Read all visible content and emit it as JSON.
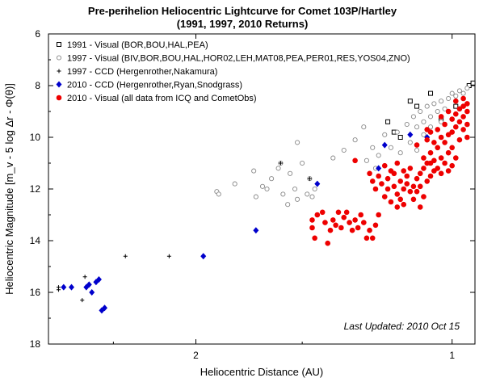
{
  "chart_data": {
    "type": "scatter",
    "title": "Pre-perihelion Heliocentric Lightcurve for Comet 103P/Hartley",
    "subtitle": "(1991, 1997, 2010 Returns)",
    "xlabel": "Heliocentric Distance (AU)",
    "ylabel": "Heliocentric Magnitude [m_v - 5 log Δr - Φ(θ)]",
    "xscale": "log",
    "xlim": [
      2.98,
      0.94
    ],
    "ylim": [
      18,
      6
    ],
    "x_ticks": [
      2,
      1
    ],
    "y_ticks": [
      6,
      8,
      10,
      12,
      14,
      16,
      18
    ],
    "note": "Last Updated: 2010 Oct 15",
    "legend_position": "top-left",
    "series": [
      {
        "name": "1991 - Visual (BOR,BOU,HAL,PEA)",
        "marker": "open-square",
        "color": "#000000",
        "points": [
          [
            1.19,
            9.4
          ],
          [
            1.12,
            8.6
          ],
          [
            1.1,
            8.8
          ],
          [
            1.06,
            8.3
          ],
          [
            1.03,
            9.3
          ],
          [
            0.99,
            8.8
          ],
          [
            0.955,
            8.0
          ],
          [
            0.945,
            7.9
          ],
          [
            1.17,
            9.8
          ],
          [
            1.15,
            10.0
          ]
        ]
      },
      {
        "name": "1997 - Visual (BIV,BOR,BOU,HAL,HOR02,LEH,MAT08,PEA,PER01,RES,YOS04,ZNO)",
        "marker": "open-circle",
        "color": "#888888",
        "points": [
          [
            1.89,
            12.1
          ],
          [
            1.88,
            12.2
          ],
          [
            1.8,
            11.8
          ],
          [
            1.71,
            11.3
          ],
          [
            1.7,
            12.3
          ],
          [
            1.67,
            11.9
          ],
          [
            1.65,
            12.0
          ],
          [
            1.63,
            11.6
          ],
          [
            1.6,
            11.2
          ],
          [
            1.59,
            11.0
          ],
          [
            1.58,
            12.2
          ],
          [
            1.56,
            12.6
          ],
          [
            1.55,
            11.4
          ],
          [
            1.53,
            12.0
          ],
          [
            1.52,
            12.4
          ],
          [
            1.52,
            10.2
          ],
          [
            1.5,
            11.0
          ],
          [
            1.48,
            12.2
          ],
          [
            1.47,
            11.6
          ],
          [
            1.46,
            12.3
          ],
          [
            1.45,
            12.0
          ],
          [
            1.44,
            13.0
          ],
          [
            1.38,
            10.8
          ],
          [
            1.34,
            10.5
          ],
          [
            1.3,
            10.1
          ],
          [
            1.27,
            9.6
          ],
          [
            1.26,
            10.9
          ],
          [
            1.24,
            10.4
          ],
          [
            1.23,
            11.2
          ],
          [
            1.22,
            10.7
          ],
          [
            1.2,
            9.9
          ],
          [
            1.18,
            10.4
          ],
          [
            1.16,
            9.8
          ],
          [
            1.15,
            10.6
          ],
          [
            1.13,
            9.5
          ],
          [
            1.12,
            10.2
          ],
          [
            1.11,
            9.2
          ],
          [
            1.1,
            9.6
          ],
          [
            1.09,
            9.0
          ],
          [
            1.08,
            9.4
          ],
          [
            1.07,
            8.8
          ],
          [
            1.06,
            9.2
          ],
          [
            1.05,
            8.7
          ],
          [
            1.04,
            9.0
          ],
          [
            1.03,
            8.6
          ],
          [
            1.02,
            8.9
          ],
          [
            1.01,
            8.5
          ],
          [
            1.0,
            8.3
          ],
          [
            0.99,
            8.4
          ],
          [
            0.98,
            8.2
          ],
          [
            0.97,
            8.3
          ],
          [
            0.96,
            8.1
          ],
          [
            1.1,
            10.5
          ],
          [
            1.08,
            9.9
          ],
          [
            1.06,
            9.6
          ],
          [
            1.03,
            9.4
          ]
        ]
      },
      {
        "name": "1997 - CCD (Hergenrother,Nakamura)",
        "marker": "plus",
        "color": "#000000",
        "points": [
          [
            2.9,
            15.9
          ],
          [
            2.9,
            15.8
          ],
          [
            2.72,
            16.3
          ],
          [
            2.7,
            15.4
          ],
          [
            2.42,
            14.6
          ],
          [
            2.15,
            14.6
          ],
          [
            1.59,
            11.0
          ],
          [
            1.47,
            11.6
          ]
        ]
      },
      {
        "name": "2010 - CCD (Hergenrother,Ryan,Snodgrass)",
        "marker": "filled-diamond",
        "color": "#0000cc",
        "points": [
          [
            2.86,
            15.8
          ],
          [
            2.8,
            15.8
          ],
          [
            2.69,
            15.8
          ],
          [
            2.67,
            15.7
          ],
          [
            2.65,
            16.0
          ],
          [
            2.62,
            15.6
          ],
          [
            2.6,
            15.5
          ],
          [
            2.58,
            16.7
          ],
          [
            2.56,
            16.6
          ],
          [
            1.96,
            14.6
          ],
          [
            1.7,
            13.6
          ],
          [
            1.44,
            11.8
          ],
          [
            1.22,
            11.2
          ],
          [
            1.2,
            10.3
          ],
          [
            1.12,
            9.9
          ],
          [
            1.07,
            10.0
          ]
        ]
      },
      {
        "name": "2010 - Visual (all data from ICQ and CometObs)",
        "marker": "filled-circle",
        "color": "#ee0000",
        "points": [
          [
            1.46,
            13.2
          ],
          [
            1.46,
            13.5
          ],
          [
            1.45,
            13.9
          ],
          [
            1.44,
            13.0
          ],
          [
            1.42,
            12.9
          ],
          [
            1.41,
            13.3
          ],
          [
            1.4,
            14.1
          ],
          [
            1.39,
            13.6
          ],
          [
            1.38,
            13.2
          ],
          [
            1.37,
            13.4
          ],
          [
            1.36,
            12.9
          ],
          [
            1.35,
            13.5
          ],
          [
            1.34,
            13.1
          ],
          [
            1.33,
            12.9
          ],
          [
            1.32,
            13.3
          ],
          [
            1.31,
            13.6
          ],
          [
            1.3,
            13.2
          ],
          [
            1.29,
            13.5
          ],
          [
            1.28,
            13.0
          ],
          [
            1.27,
            13.3
          ],
          [
            1.26,
            13.9
          ],
          [
            1.25,
            13.6
          ],
          [
            1.24,
            13.9
          ],
          [
            1.23,
            13.4
          ],
          [
            1.22,
            13.0
          ],
          [
            1.3,
            10.9
          ],
          [
            1.25,
            11.4
          ],
          [
            1.24,
            11.7
          ],
          [
            1.23,
            12.0
          ],
          [
            1.22,
            11.5
          ],
          [
            1.21,
            11.8
          ],
          [
            1.2,
            12.3
          ],
          [
            1.2,
            11.1
          ],
          [
            1.19,
            11.6
          ],
          [
            1.19,
            12.0
          ],
          [
            1.18,
            11.3
          ],
          [
            1.18,
            12.5
          ],
          [
            1.17,
            11.9
          ],
          [
            1.17,
            11.4
          ],
          [
            1.16,
            12.2
          ],
          [
            1.16,
            11.0
          ],
          [
            1.15,
            11.7
          ],
          [
            1.15,
            12.4
          ],
          [
            1.14,
            11.3
          ],
          [
            1.14,
            12.0
          ],
          [
            1.13,
            11.8
          ],
          [
            1.13,
            11.5
          ],
          [
            1.12,
            12.1
          ],
          [
            1.12,
            11.2
          ],
          [
            1.11,
            11.9
          ],
          [
            1.11,
            12.4
          ],
          [
            1.1,
            11.6
          ],
          [
            1.1,
            12.1
          ],
          [
            1.09,
            11.4
          ],
          [
            1.09,
            11.9
          ],
          [
            1.08,
            11.2
          ],
          [
            1.08,
            12.3
          ],
          [
            1.07,
            11.7
          ],
          [
            1.07,
            11.0
          ],
          [
            1.06,
            11.5
          ],
          [
            1.16,
            12.7
          ],
          [
            1.14,
            12.6
          ],
          [
            1.09,
            12.7
          ],
          [
            1.1,
            10.3
          ],
          [
            1.08,
            10.8
          ],
          [
            1.07,
            10.1
          ],
          [
            1.06,
            10.6
          ],
          [
            1.06,
            11.0
          ],
          [
            1.05,
            10.2
          ],
          [
            1.05,
            10.9
          ],
          [
            1.04,
            9.7
          ],
          [
            1.04,
            10.4
          ],
          [
            1.03,
            10.0
          ],
          [
            1.03,
            10.8
          ],
          [
            1.02,
            9.5
          ],
          [
            1.02,
            10.2
          ],
          [
            1.01,
            9.9
          ],
          [
            1.01,
            10.6
          ],
          [
            1.0,
            9.3
          ],
          [
            1.0,
            9.8
          ],
          [
            1.0,
            10.4
          ],
          [
            0.99,
            9.1
          ],
          [
            0.99,
            9.6
          ],
          [
            0.98,
            8.9
          ],
          [
            0.98,
            9.4
          ],
          [
            0.98,
            10.1
          ],
          [
            0.97,
            8.8
          ],
          [
            0.97,
            9.2
          ],
          [
            0.97,
            9.7
          ],
          [
            0.96,
            9.0
          ],
          [
            0.96,
            9.5
          ],
          [
            0.96,
            10.0
          ],
          [
            1.05,
            11.3
          ],
          [
            1.04,
            11.2
          ],
          [
            1.03,
            11.4
          ],
          [
            1.02,
            11.0
          ],
          [
            1.01,
            11.3
          ],
          [
            1.0,
            11.1
          ],
          [
            0.99,
            10.8
          ],
          [
            1.07,
            9.7
          ],
          [
            1.06,
            9.8
          ],
          [
            1.03,
            9.2
          ],
          [
            1.01,
            9.0
          ],
          [
            0.99,
            8.6
          ],
          [
            0.97,
            8.5
          ],
          [
            0.96,
            8.7
          ]
        ]
      }
    ]
  }
}
